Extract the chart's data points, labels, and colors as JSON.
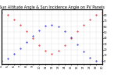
{
  "title": "Sun Altitude Angle & Sun Incidence Angle on PV Panels",
  "background_color": "#ffffff",
  "grid_color": "#aaaaaa",
  "blue_color": "#0000dd",
  "red_color": "#dd0000",
  "title_fontsize": 3.5,
  "tick_fontsize": 2.5,
  "marker_size": 0.8,
  "time_hours": [
    4,
    5,
    6,
    7,
    8,
    9,
    10,
    11,
    12,
    13,
    14,
    15,
    16,
    17,
    18,
    19,
    20
  ],
  "xlim_hours": [
    4,
    20
  ],
  "ylim": [
    -5,
    90
  ],
  "yticks": [
    0,
    10,
    20,
    30,
    40,
    50,
    60,
    70,
    80
  ],
  "sun_altitude_hours": [
    4,
    5,
    6,
    7,
    8,
    9,
    10,
    11,
    12,
    13,
    14,
    15,
    16,
    17,
    18,
    19,
    20
  ],
  "sun_altitude_vals": [
    0,
    5,
    12,
    22,
    33,
    44,
    54,
    61,
    63,
    60,
    52,
    41,
    29,
    17,
    6,
    0,
    0
  ],
  "incidence_hours": [
    4,
    5,
    6,
    7,
    8,
    9,
    10,
    11,
    12,
    13,
    14,
    15,
    16,
    17,
    18,
    19,
    20
  ],
  "incidence_vals": [
    85,
    80,
    73,
    63,
    52,
    40,
    28,
    18,
    12,
    18,
    28,
    40,
    52,
    63,
    73,
    80,
    85
  ]
}
